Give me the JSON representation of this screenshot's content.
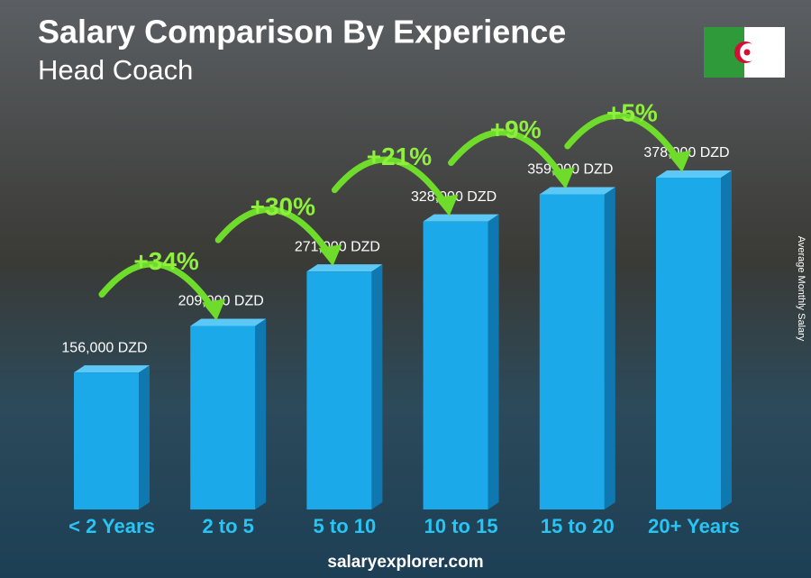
{
  "chart_data": {
    "type": "bar",
    "title": "Salary Comparison By Experience",
    "subtitle": "Head Coach",
    "categories": [
      "< 2 Years",
      "2 to 5",
      "5 to 10",
      "10 to 15",
      "15 to 20",
      "20+ Years"
    ],
    "values": [
      156000,
      209000,
      271000,
      328000,
      359000,
      378000
    ],
    "value_labels": [
      "156,000 DZD",
      "209,000 DZD",
      "271,000 DZD",
      "328,000 DZD",
      "359,000 DZD",
      "378,000 DZD"
    ],
    "changes": [
      "+34%",
      "+30%",
      "+21%",
      "+9%",
      "+5%"
    ],
    "y_label": "Average Monthly Salary",
    "footer": "salaryexplorer.com",
    "color": "#1ba9ea"
  }
}
